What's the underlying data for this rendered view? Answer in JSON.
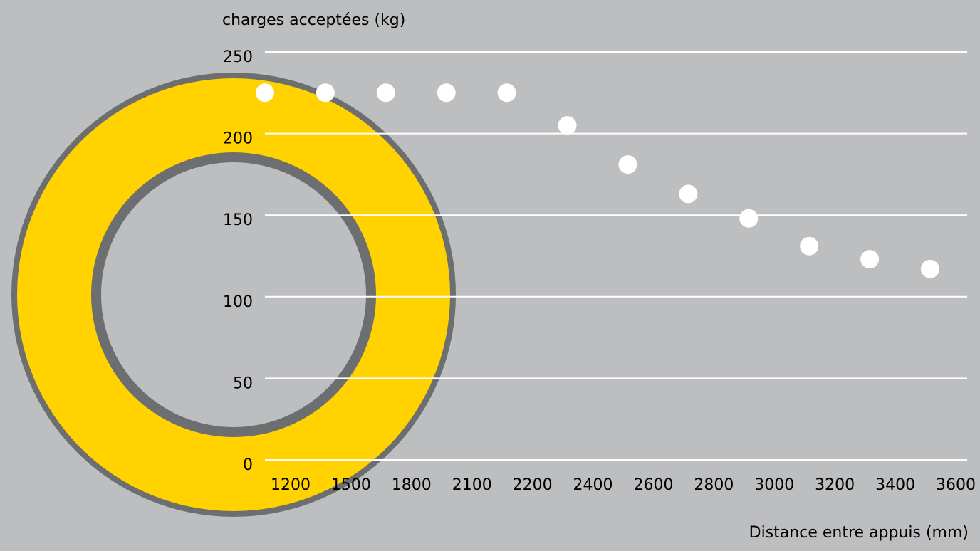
{
  "chart_data": {
    "type": "scatter",
    "ylabel": "charges acceptées (kg)",
    "xlabel": "Distance entre appuis (mm)",
    "categories": [
      "1200",
      "1500",
      "1800",
      "2100",
      "2200",
      "2400",
      "2600",
      "2800",
      "3000",
      "3200",
      "3400",
      "3600"
    ],
    "values": [
      225,
      225,
      225,
      225,
      225,
      205,
      181,
      163,
      148,
      131,
      123,
      117
    ],
    "yticks": [
      0,
      50,
      100,
      150,
      200,
      250
    ],
    "ylim": [
      0,
      250
    ],
    "grid": true,
    "colors": {
      "background": "#bdbec0",
      "grid": "#ffffff",
      "points": "#ffffff",
      "ring_fill": "#ffd200",
      "ring_stroke": "#6d6e70"
    }
  }
}
